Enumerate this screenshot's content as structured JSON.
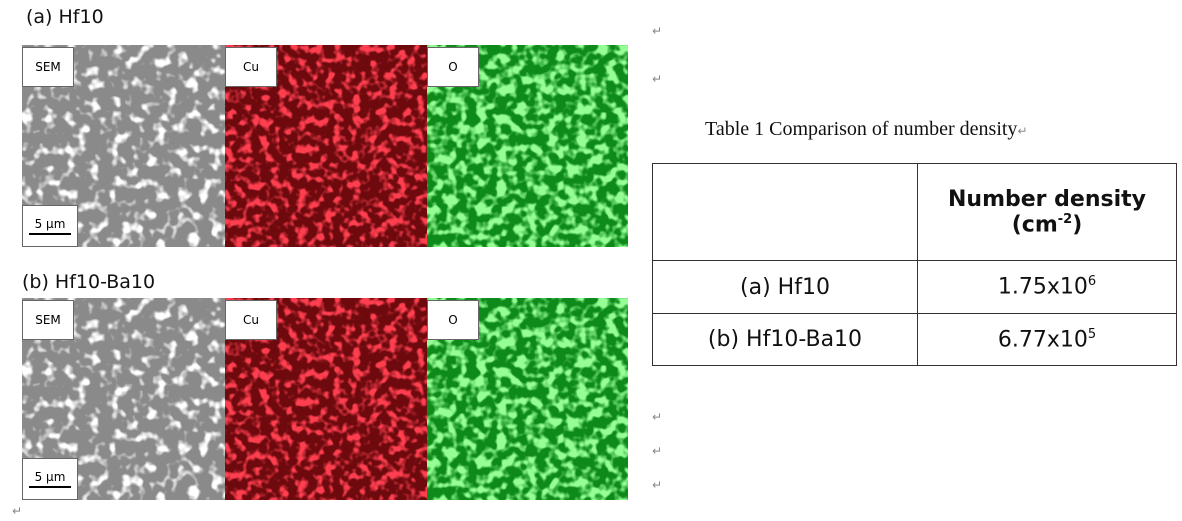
{
  "figure": {
    "panels": [
      {
        "label": "(a) Hf10",
        "maps": [
          "SEM",
          "Cu",
          "O"
        ],
        "scale_bar": "5 µm"
      },
      {
        "label": "(b) Hf10-Ba10",
        "maps": [
          "SEM",
          "Cu",
          "O"
        ],
        "scale_bar": "5 µm"
      }
    ]
  },
  "table": {
    "title": "Table 1 Comparison of number density",
    "header": {
      "line1": "Number density",
      "unit_open": "(cm",
      "unit_exp": "-2",
      "unit_close": ")"
    },
    "rows": [
      {
        "sample": "(a) Hf10",
        "base": "1.75x10",
        "exp": "6"
      },
      {
        "sample": "(b) Hf10-Ba10",
        "base": "6.77x10",
        "exp": "5"
      }
    ]
  },
  "paragraph_mark": "↵"
}
